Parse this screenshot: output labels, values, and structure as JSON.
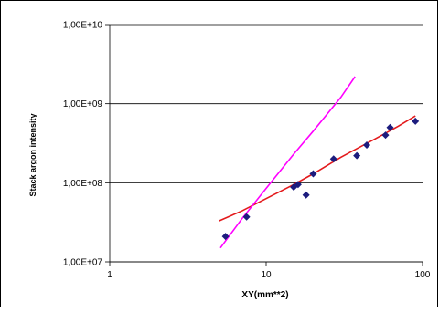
{
  "chart_data": {
    "type": "scatter",
    "title": "",
    "xlabel": "XY(mm**2)",
    "ylabel": "Stack argon intensity",
    "x_scale": "log",
    "y_scale": "log",
    "xlim": [
      1,
      100
    ],
    "ylim": [
      10000000,
      10000000000
    ],
    "x_ticks": [
      1,
      10,
      100
    ],
    "x_tick_labels": [
      "1",
      "10",
      "100"
    ],
    "y_ticks": [
      10000000,
      100000000,
      1000000000,
      10000000000
    ],
    "y_tick_labels": [
      "1,00E+07",
      "1,00E+08",
      "1,00E+09",
      "1,00E+10"
    ],
    "grid": "horizontal",
    "legend": "none",
    "colors": {
      "points": "#1c1c7e",
      "red_line": "#e31a1c",
      "magenta_line": "#ff00ff",
      "grid": "#000000"
    },
    "series": [
      {
        "type": "scatter",
        "color": "#1c1c7e",
        "points": [
          [
            5.5,
            21000000
          ],
          [
            7.5,
            37000000
          ],
          [
            15,
            88000000
          ],
          [
            16,
            95000000
          ],
          [
            18,
            70000000
          ],
          [
            20,
            130000000
          ],
          [
            27,
            200000000
          ],
          [
            38,
            220000000
          ],
          [
            44,
            300000000
          ],
          [
            58,
            400000000
          ],
          [
            62,
            500000000
          ],
          [
            90,
            600000000
          ]
        ]
      },
      {
        "type": "line",
        "color": "#e31a1c",
        "points": [
          [
            5,
            33000000
          ],
          [
            7,
            44000000
          ],
          [
            10,
            63000000
          ],
          [
            15,
            95000000
          ],
          [
            20,
            130000000
          ],
          [
            30,
            210000000
          ],
          [
            50,
            360000000
          ],
          [
            70,
            520000000
          ],
          [
            90,
            700000000
          ]
        ]
      },
      {
        "type": "line",
        "color": "#ff00ff",
        "points": [
          [
            5.1,
            15000000
          ],
          [
            7,
            35000000
          ],
          [
            10,
            85000000
          ],
          [
            15,
            230000000
          ],
          [
            20,
            450000000
          ],
          [
            30,
            1200000000
          ],
          [
            37,
            2200000000
          ]
        ]
      }
    ]
  }
}
